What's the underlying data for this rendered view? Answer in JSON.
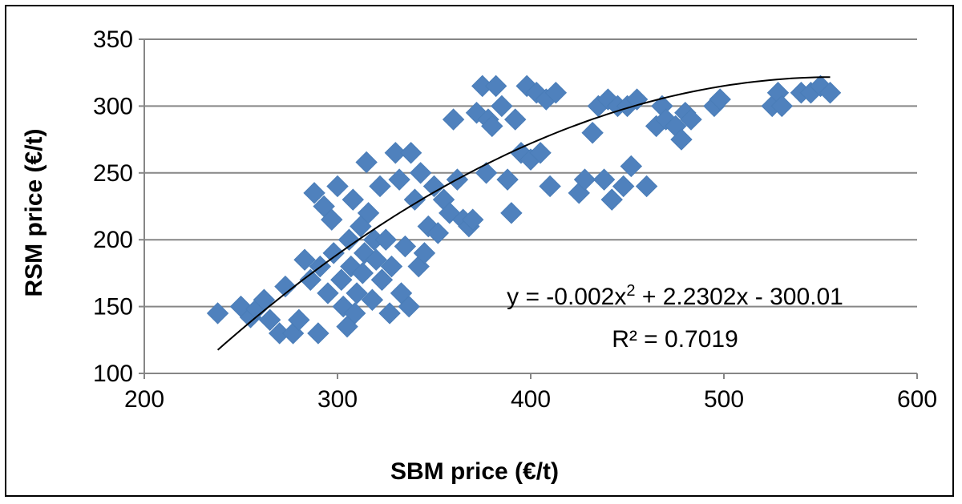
{
  "chart_data": {
    "type": "scatter",
    "xlabel": "SBM price (€/t)",
    "ylabel": "RSM price (€/t)",
    "xlim": [
      200,
      600
    ],
    "ylim": [
      100,
      350
    ],
    "xticks": [
      200,
      300,
      400,
      500,
      600
    ],
    "yticks": [
      100,
      150,
      200,
      250,
      300,
      350
    ],
    "grid": "horizontal",
    "marker": "diamond",
    "marker_color": "#4F81BD",
    "trendline": {
      "type": "polynomial",
      "coefficients": [
        -0.002,
        2.2302,
        -300.01
      ],
      "x_range": [
        238,
        555
      ],
      "color": "#000000"
    },
    "annotations": {
      "equation_prefix": "y = -0.002x",
      "equation_exponent": "2",
      "equation_suffix": " + 2.2302x - 300.01",
      "r_squared": "R² = 0.7019"
    },
    "series": [
      {
        "x": [
          238,
          250,
          255,
          258,
          262,
          265,
          270,
          273,
          277,
          280,
          283,
          286,
          288,
          290,
          291,
          293,
          295,
          297,
          298,
          300,
          302,
          303,
          305,
          306,
          307,
          308,
          309,
          310,
          312,
          313,
          314,
          315,
          316,
          318,
          319,
          320,
          322,
          323,
          325,
          327,
          328,
          330,
          332,
          333,
          335,
          337,
          338,
          340,
          342,
          343,
          345,
          347,
          350,
          352,
          355,
          358,
          360,
          362,
          365,
          368,
          370,
          372,
          375,
          377,
          378,
          380,
          382,
          385,
          388,
          390,
          392,
          395,
          398,
          400,
          403,
          405,
          408,
          410,
          413,
          425,
          428,
          432,
          435,
          438,
          440,
          442,
          445,
          448,
          450,
          452,
          455,
          460,
          465,
          468,
          470,
          475,
          478,
          480,
          483,
          495,
          498,
          525,
          528,
          530,
          540,
          545,
          550,
          555
        ],
        "y": [
          145,
          150,
          142,
          148,
          155,
          140,
          130,
          165,
          130,
          140,
          185,
          170,
          235,
          130,
          180,
          225,
          160,
          215,
          190,
          240,
          170,
          150,
          135,
          200,
          180,
          230,
          145,
          160,
          210,
          175,
          190,
          258,
          220,
          155,
          200,
          185,
          240,
          170,
          200,
          145,
          180,
          265,
          245,
          160,
          195,
          150,
          265,
          230,
          180,
          250,
          190,
          210,
          240,
          205,
          230,
          220,
          290,
          245,
          215,
          210,
          215,
          295,
          315,
          250,
          290,
          285,
          315,
          300,
          245,
          220,
          290,
          265,
          315,
          260,
          310,
          265,
          305,
          240,
          310,
          235,
          245,
          280,
          300,
          245,
          305,
          230,
          300,
          240,
          300,
          255,
          305,
          240,
          285,
          300,
          290,
          285,
          275,
          295,
          290,
          300,
          305,
          300,
          310,
          300,
          310,
          310,
          315,
          310
        ]
      }
    ]
  }
}
